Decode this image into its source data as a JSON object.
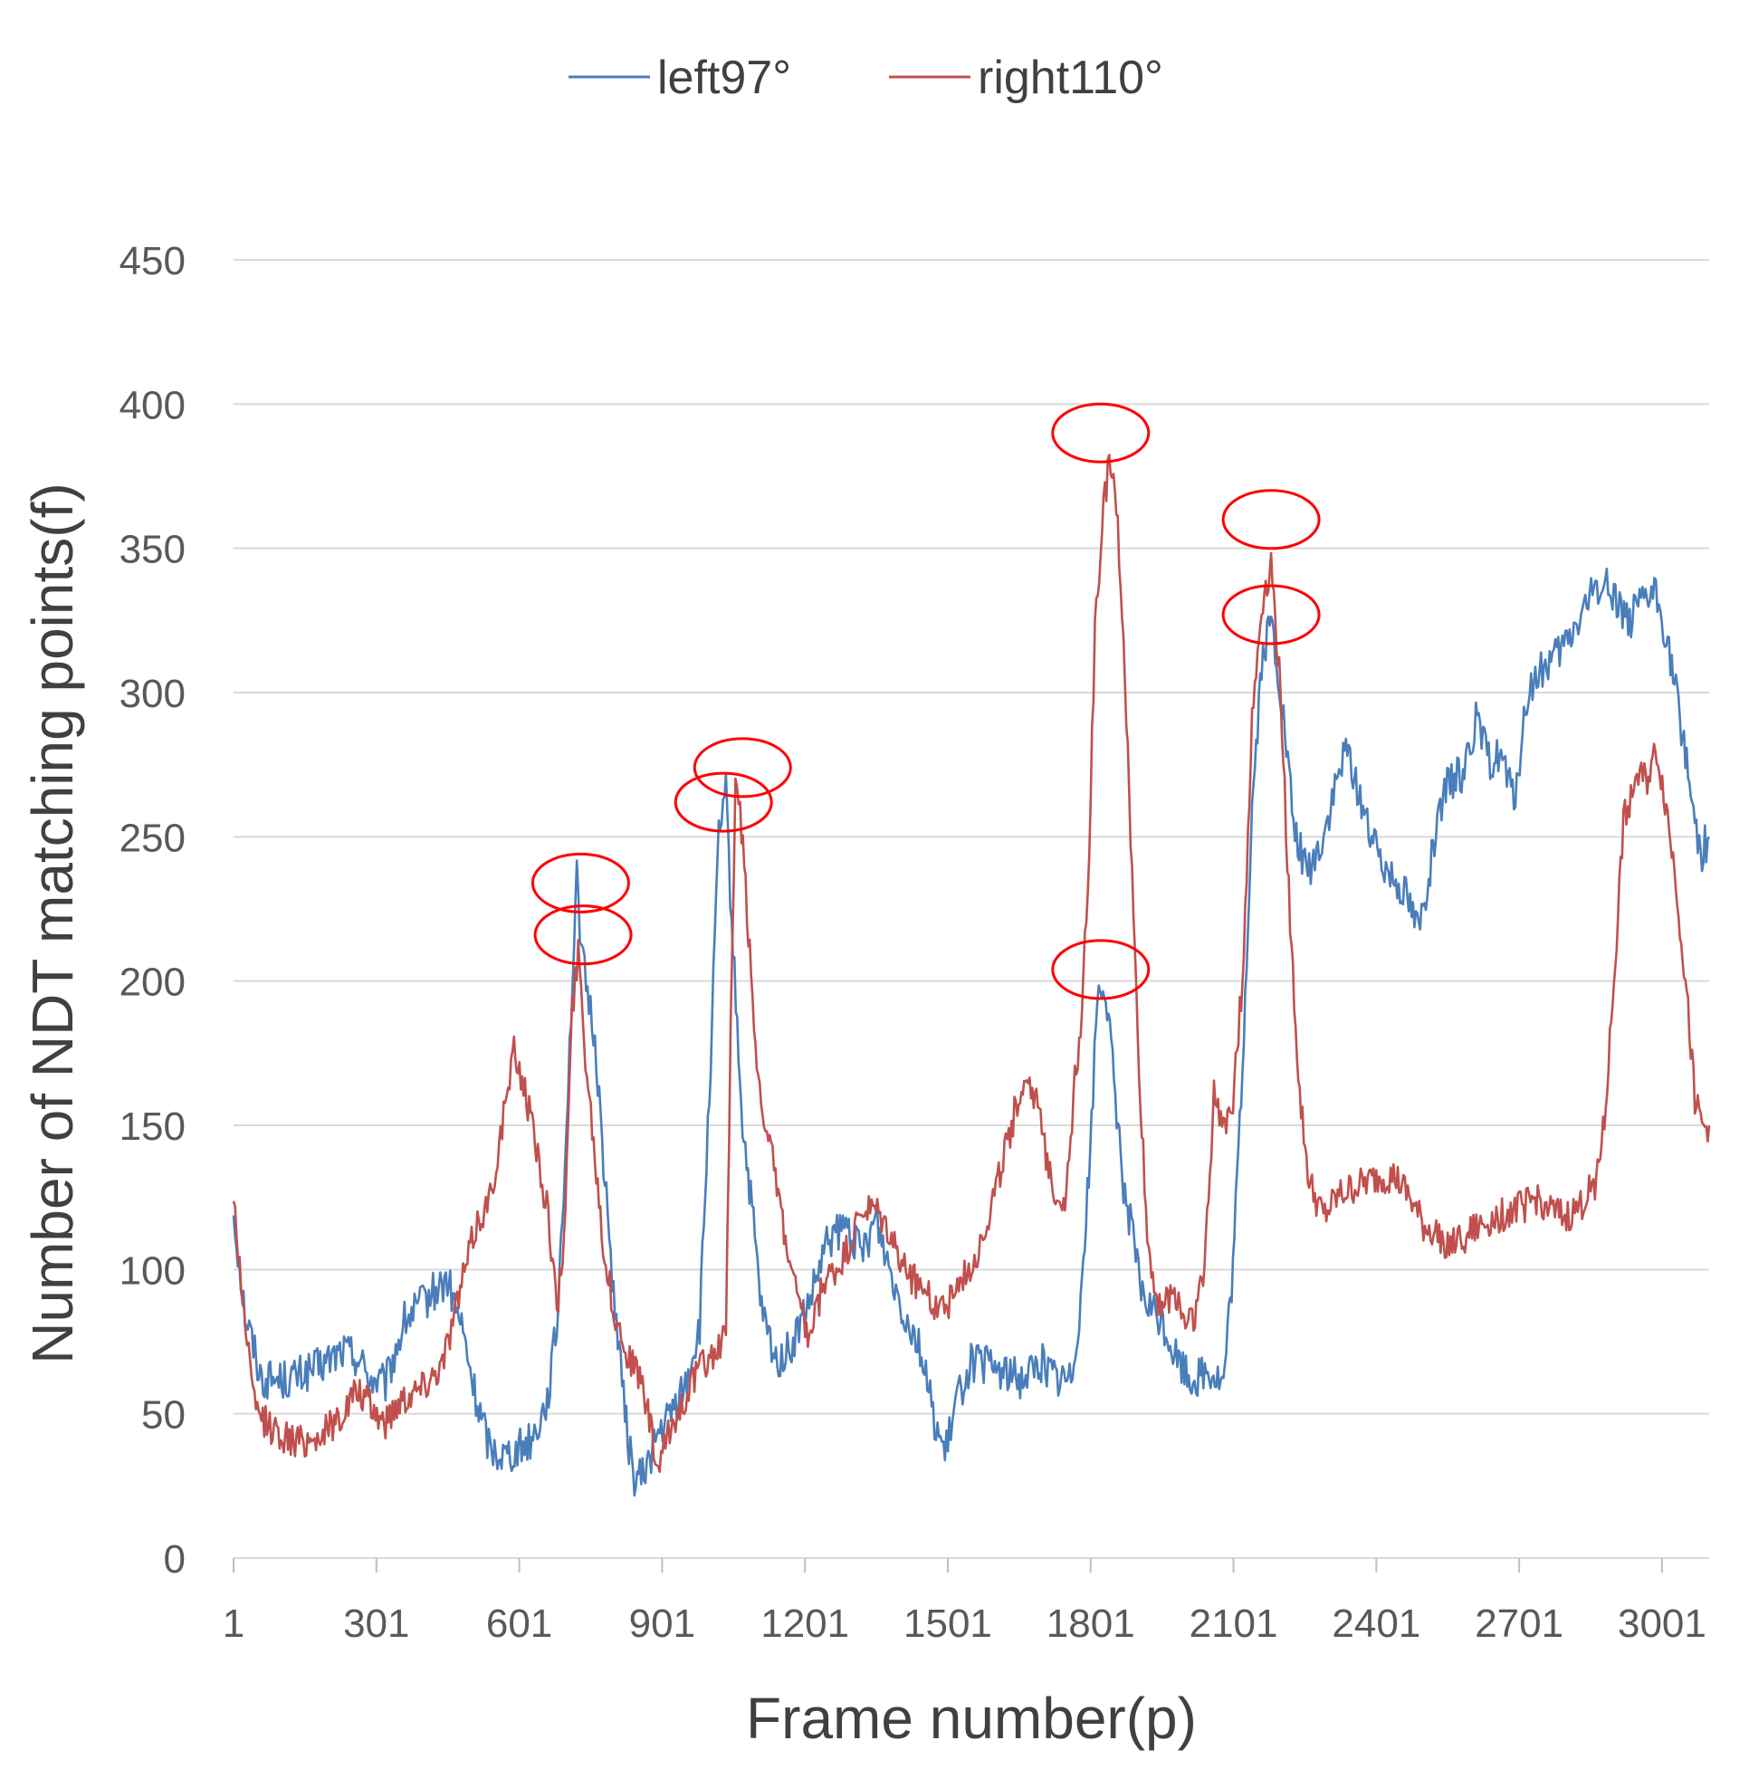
{
  "chart_data": {
    "type": "line",
    "title": "",
    "xlabel": "Frame number(p)",
    "ylabel": "Number of NDT matching points(f)",
    "xlim": [
      1,
      3100
    ],
    "ylim": [
      0,
      450
    ],
    "yticks": [
      0,
      50,
      100,
      150,
      200,
      250,
      300,
      350,
      400,
      450
    ],
    "xticks": [
      1,
      301,
      601,
      901,
      1201,
      1501,
      1801,
      2101,
      2401,
      2701,
      3001
    ],
    "grid": true,
    "legend_position": "top-center",
    "series": [
      {
        "name": "left97°",
        "color": "#4a7ebb",
        "noise": 7,
        "points": [
          [
            1,
            120
          ],
          [
            25,
            85
          ],
          [
            60,
            62
          ],
          [
            120,
            62
          ],
          [
            180,
            66
          ],
          [
            230,
            72
          ],
          [
            260,
            70
          ],
          [
            290,
            62
          ],
          [
            320,
            60
          ],
          [
            360,
            82
          ],
          [
            420,
            92
          ],
          [
            450,
            96
          ],
          [
            480,
            80
          ],
          [
            510,
            55
          ],
          [
            540,
            38
          ],
          [
            570,
            36
          ],
          [
            600,
            38
          ],
          [
            630,
            42
          ],
          [
            660,
            55
          ],
          [
            680,
            80
          ],
          [
            700,
            150
          ],
          [
            710,
            190
          ],
          [
            722,
            235
          ],
          [
            735,
            205
          ],
          [
            760,
            180
          ],
          [
            790,
            110
          ],
          [
            820,
            55
          ],
          [
            840,
            28
          ],
          [
            860,
            28
          ],
          [
            890,
            42
          ],
          [
            920,
            50
          ],
          [
            950,
            60
          ],
          [
            980,
            80
          ],
          [
            1000,
            160
          ],
          [
            1020,
            250
          ],
          [
            1035,
            265
          ],
          [
            1050,
            210
          ],
          [
            1070,
            150
          ],
          [
            1090,
            120
          ],
          [
            1110,
            85
          ],
          [
            1140,
            68
          ],
          [
            1170,
            72
          ],
          [
            1210,
            88
          ],
          [
            1250,
            110
          ],
          [
            1290,
            115
          ],
          [
            1320,
            105
          ],
          [
            1350,
            118
          ],
          [
            1380,
            100
          ],
          [
            1410,
            85
          ],
          [
            1440,
            75
          ],
          [
            1470,
            50
          ],
          [
            1495,
            35
          ],
          [
            1520,
            55
          ],
          [
            1550,
            68
          ],
          [
            1600,
            66
          ],
          [
            1650,
            62
          ],
          [
            1700,
            68
          ],
          [
            1730,
            62
          ],
          [
            1760,
            62
          ],
          [
            1780,
            90
          ],
          [
            1800,
            140
          ],
          [
            1815,
            195
          ],
          [
            1830,
            200
          ],
          [
            1850,
            165
          ],
          [
            1870,
            130
          ],
          [
            1890,
            110
          ],
          [
            1910,
            90
          ],
          [
            1950,
            82
          ],
          [
            1980,
            70
          ],
          [
            2010,
            62
          ],
          [
            2050,
            65
          ],
          [
            2080,
            60
          ],
          [
            2100,
            100
          ],
          [
            2120,
            170
          ],
          [
            2140,
            260
          ],
          [
            2160,
            310
          ],
          [
            2180,
            325
          ],
          [
            2200,
            300
          ],
          [
            2230,
            250
          ],
          [
            2260,
            238
          ],
          [
            2290,
            250
          ],
          [
            2320,
            270
          ],
          [
            2340,
            280
          ],
          [
            2370,
            262
          ],
          [
            2400,
            245
          ],
          [
            2430,
            238
          ],
          [
            2460,
            232
          ],
          [
            2490,
            218
          ],
          [
            2520,
            245
          ],
          [
            2550,
            268
          ],
          [
            2580,
            272
          ],
          [
            2610,
            290
          ],
          [
            2640,
            275
          ],
          [
            2660,
            280
          ],
          [
            2690,
            262
          ],
          [
            2720,
            300
          ],
          [
            2750,
            308
          ],
          [
            2780,
            312
          ],
          [
            2810,
            320
          ],
          [
            2840,
            330
          ],
          [
            2870,
            338
          ],
          [
            2900,
            335
          ],
          [
            2930,
            325
          ],
          [
            2960,
            330
          ],
          [
            2985,
            335
          ],
          [
            3010,
            320
          ],
          [
            3030,
            300
          ],
          [
            3050,
            280
          ],
          [
            3070,
            255
          ],
          [
            3085,
            245
          ],
          [
            3100,
            250
          ]
        ]
      },
      {
        "name": "right110°",
        "color": "#c0504d",
        "noise": 6,
        "points": [
          [
            1,
            125
          ],
          [
            20,
            90
          ],
          [
            45,
            52
          ],
          [
            80,
            45
          ],
          [
            130,
            40
          ],
          [
            180,
            42
          ],
          [
            230,
            50
          ],
          [
            260,
            58
          ],
          [
            290,
            52
          ],
          [
            320,
            47
          ],
          [
            350,
            55
          ],
          [
            400,
            60
          ],
          [
            440,
            68
          ],
          [
            480,
            95
          ],
          [
            510,
            115
          ],
          [
            540,
            125
          ],
          [
            565,
            150
          ],
          [
            590,
            175
          ],
          [
            610,
            165
          ],
          [
            640,
            140
          ],
          [
            665,
            115
          ],
          [
            680,
            85
          ],
          [
            695,
            110
          ],
          [
            712,
            190
          ],
          [
            725,
            210
          ],
          [
            740,
            175
          ],
          [
            760,
            140
          ],
          [
            780,
            105
          ],
          [
            800,
            85
          ],
          [
            830,
            70
          ],
          [
            860,
            60
          ],
          [
            880,
            42
          ],
          [
            890,
            30
          ],
          [
            920,
            45
          ],
          [
            960,
            60
          ],
          [
            990,
            68
          ],
          [
            1020,
            72
          ],
          [
            1035,
            80
          ],
          [
            1045,
            180
          ],
          [
            1055,
            265
          ],
          [
            1065,
            260
          ],
          [
            1085,
            210
          ],
          [
            1100,
            170
          ],
          [
            1130,
            140
          ],
          [
            1160,
            110
          ],
          [
            1190,
            85
          ],
          [
            1210,
            75
          ],
          [
            1240,
            95
          ],
          [
            1270,
            100
          ],
          [
            1300,
            110
          ],
          [
            1320,
            120
          ],
          [
            1350,
            120
          ],
          [
            1380,
            112
          ],
          [
            1410,
            100
          ],
          [
            1440,
            95
          ],
          [
            1470,
            88
          ],
          [
            1500,
            88
          ],
          [
            1530,
            96
          ],
          [
            1560,
            105
          ],
          [
            1590,
            120
          ],
          [
            1620,
            140
          ],
          [
            1650,
            160
          ],
          [
            1670,
            168
          ],
          [
            1690,
            155
          ],
          [
            1710,
            138
          ],
          [
            1730,
            125
          ],
          [
            1750,
            125
          ],
          [
            1765,
            160
          ],
          [
            1780,
            185
          ],
          [
            1795,
            230
          ],
          [
            1810,
            320
          ],
          [
            1825,
            360
          ],
          [
            1840,
            380
          ],
          [
            1855,
            365
          ],
          [
            1870,
            320
          ],
          [
            1885,
            250
          ],
          [
            1900,
            180
          ],
          [
            1920,
            110
          ],
          [
            1940,
            90
          ],
          [
            1960,
            88
          ],
          [
            1980,
            92
          ],
          [
            2000,
            82
          ],
          [
            2020,
            85
          ],
          [
            2040,
            100
          ],
          [
            2060,
            160
          ],
          [
            2080,
            150
          ],
          [
            2100,
            160
          ],
          [
            2120,
            200
          ],
          [
            2140,
            290
          ],
          [
            2160,
            330
          ],
          [
            2180,
            345
          ],
          [
            2200,
            300
          ],
          [
            2220,
            220
          ],
          [
            2240,
            160
          ],
          [
            2260,
            130
          ],
          [
            2290,
            118
          ],
          [
            2320,
            125
          ],
          [
            2350,
            128
          ],
          [
            2380,
            130
          ],
          [
            2410,
            132
          ],
          [
            2440,
            132
          ],
          [
            2470,
            125
          ],
          [
            2500,
            115
          ],
          [
            2530,
            112
          ],
          [
            2560,
            108
          ],
          [
            2590,
            112
          ],
          [
            2620,
            115
          ],
          [
            2650,
            118
          ],
          [
            2680,
            120
          ],
          [
            2710,
            122
          ],
          [
            2740,
            125
          ],
          [
            2770,
            120
          ],
          [
            2800,
            118
          ],
          [
            2830,
            122
          ],
          [
            2860,
            130
          ],
          [
            2880,
            150
          ],
          [
            2900,
            200
          ],
          [
            2920,
            255
          ],
          [
            2945,
            270
          ],
          [
            2970,
            270
          ],
          [
            2990,
            280
          ],
          [
            3010,
            260
          ],
          [
            3030,
            235
          ],
          [
            3050,
            200
          ],
          [
            3070,
            160
          ],
          [
            3085,
            150
          ],
          [
            3100,
            150
          ]
        ]
      }
    ],
    "annotations": [
      {
        "type": "ellipse",
        "x": 730,
        "y": 234,
        "color": "#ff0000"
      },
      {
        "type": "ellipse",
        "x": 735,
        "y": 216,
        "color": "#ff0000"
      },
      {
        "type": "ellipse",
        "x": 1030,
        "y": 262,
        "color": "#ff0000"
      },
      {
        "type": "ellipse",
        "x": 1070,
        "y": 274,
        "color": "#ff0000"
      },
      {
        "type": "ellipse",
        "x": 1822,
        "y": 390,
        "color": "#ff0000"
      },
      {
        "type": "ellipse",
        "x": 1822,
        "y": 204,
        "color": "#ff0000"
      },
      {
        "type": "ellipse",
        "x": 2180,
        "y": 360,
        "color": "#ff0000"
      },
      {
        "type": "ellipse",
        "x": 2180,
        "y": 327,
        "color": "#ff0000"
      }
    ]
  }
}
